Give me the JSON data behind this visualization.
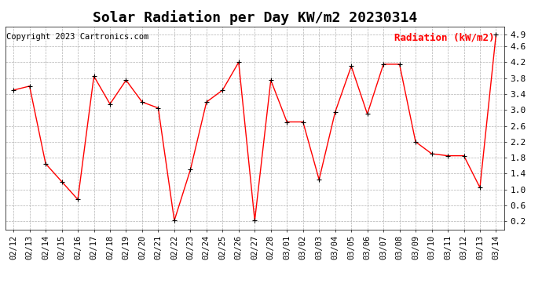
{
  "title": "Solar Radiation per Day KW/m2 20230314",
  "copyright": "Copyright 2023 Cartronics.com",
  "legend_label": "Radiation (kW/m2)",
  "dates": [
    "02/12",
    "02/13",
    "02/14",
    "02/15",
    "02/16",
    "02/17",
    "02/18",
    "02/19",
    "02/20",
    "02/21",
    "02/22",
    "02/23",
    "02/24",
    "02/25",
    "02/26",
    "02/27",
    "02/28",
    "03/01",
    "03/02",
    "03/03",
    "03/04",
    "03/05",
    "03/06",
    "03/07",
    "03/08",
    "03/09",
    "03/10",
    "03/11",
    "03/12",
    "03/13",
    "03/14"
  ],
  "values": [
    3.5,
    3.6,
    1.65,
    1.2,
    0.75,
    3.85,
    3.15,
    3.75,
    3.2,
    3.05,
    0.22,
    1.5,
    3.2,
    3.5,
    4.2,
    0.22,
    3.75,
    2.7,
    2.7,
    1.25,
    2.95,
    4.1,
    2.9,
    4.15,
    4.15,
    2.2,
    1.9,
    1.85,
    1.85,
    1.05,
    4.9
  ],
  "line_color": "#ff0000",
  "marker_color": "black",
  "ylim": [
    0.0,
    5.1
  ],
  "yticks": [
    0.2,
    0.6,
    1.0,
    1.4,
    1.8,
    2.2,
    2.6,
    3.0,
    3.4,
    3.8,
    4.2,
    4.6,
    4.9
  ],
  "background_color": "white",
  "grid_color": "#aaaaaa",
  "title_fontsize": 13,
  "copyright_fontsize": 7.5,
  "legend_fontsize": 9,
  "tick_fontsize": 7.5,
  "ytick_fontsize": 8
}
